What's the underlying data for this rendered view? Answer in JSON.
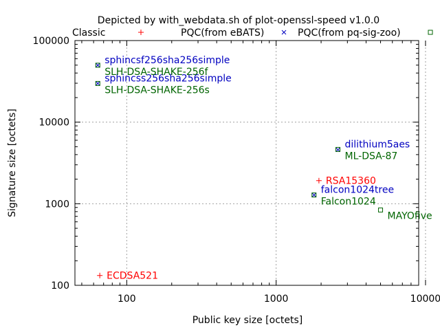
{
  "chart_data": {
    "type": "scatter",
    "title": "Depicted by with_webdata.sh of plot-openssl-speed v1.0.0",
    "xlabel": "Public key size [octets]",
    "ylabel": "Signature size [octets]",
    "x_scale": "log",
    "y_scale": "log",
    "xlim": [
      45,
      9000
    ],
    "ylim": [
      100,
      100000
    ],
    "x_ticks": [
      "100",
      "1000",
      "10000"
    ],
    "y_ticks": [
      "100",
      "1000",
      "10000",
      "100000"
    ],
    "grid": true,
    "legend_position": "top",
    "legend": [
      {
        "label": "Classic",
        "marker": "plus",
        "color": "#ff0000"
      },
      {
        "label": "PQC(from eBATS)",
        "marker": "cross",
        "color": "#0000c0"
      },
      {
        "label": "PQC(from pq-sig-zoo)",
        "marker": "square",
        "color": "#006400"
      }
    ],
    "series": [
      {
        "name": "Classic",
        "color": "#ff0000",
        "marker": "plus",
        "points": [
          {
            "x": 66,
            "y": 132,
            "label": "ECDSA521"
          },
          {
            "x": 1934,
            "y": 1920,
            "label": "RSA15360"
          }
        ]
      },
      {
        "name": "PQC(from eBATS)",
        "color": "#0000c0",
        "marker": "cross",
        "points": [
          {
            "x": 64,
            "y": 49856,
            "label": "sphincsf256sha256simple"
          },
          {
            "x": 64,
            "y": 29792,
            "label": "sphincss256sha256simple"
          },
          {
            "x": 2592,
            "y": 4595,
            "label": "dilithium5aes"
          },
          {
            "x": 1793,
            "y": 1280,
            "label": "falcon1024tree"
          }
        ]
      },
      {
        "name": "PQC(from pq-sig-zoo)",
        "color": "#006400",
        "marker": "square",
        "points": [
          {
            "x": 64,
            "y": 49856,
            "label": "SLH-DSA-SHAKE-256f"
          },
          {
            "x": 64,
            "y": 29792,
            "label": "SLH-DSA-SHAKE-256s"
          },
          {
            "x": 2592,
            "y": 4627,
            "label": "ML-DSA-87"
          },
          {
            "x": 1793,
            "y": 1280,
            "label": "Falcon1024"
          },
          {
            "x": 5000,
            "y": 838,
            "label": "MAYOfive"
          }
        ]
      }
    ]
  }
}
